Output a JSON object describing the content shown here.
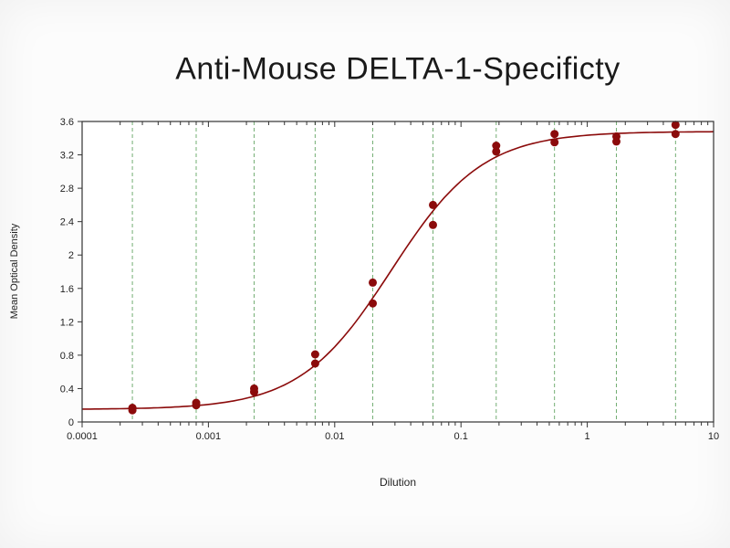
{
  "page": {
    "background": "#fcfcfc"
  },
  "chart_data": {
    "type": "scatter",
    "title": "Anti-Mouse DELTA-1-Specificty",
    "xlabel": "Dilution",
    "ylabel": "Mean Optical Density",
    "x_scale": "log",
    "grid": "vertical-dashed",
    "legend": "none",
    "xlim": [
      0.0001,
      10
    ],
    "ylim": [
      0,
      3.6
    ],
    "x_ticks": [
      {
        "value": 0.0001,
        "label": "0.0001"
      },
      {
        "value": 0.001,
        "label": "0.001"
      },
      {
        "value": 0.01,
        "label": "0.01"
      },
      {
        "value": 0.1,
        "label": "0.1"
      },
      {
        "value": 1,
        "label": "1"
      },
      {
        "value": 10,
        "label": "10"
      }
    ],
    "y_ticks": [
      {
        "value": 0,
        "label": "0"
      },
      {
        "value": 0.4,
        "label": "0.4"
      },
      {
        "value": 0.8,
        "label": "0.8"
      },
      {
        "value": 1.2,
        "label": "1.2"
      },
      {
        "value": 1.6,
        "label": "1.6"
      },
      {
        "value": 2,
        "label": "2"
      },
      {
        "value": 2.4,
        "label": "2.4"
      },
      {
        "value": 2.8,
        "label": "2.8"
      },
      {
        "value": 3.2,
        "label": "3.2"
      },
      {
        "value": 3.6,
        "label": "3.6"
      }
    ],
    "points": [
      [
        0.00025,
        0.14
      ],
      [
        0.00025,
        0.17
      ],
      [
        0.0008,
        0.2
      ],
      [
        0.0008,
        0.23
      ],
      [
        0.0023,
        0.36
      ],
      [
        0.0023,
        0.4
      ],
      [
        0.007,
        0.7
      ],
      [
        0.007,
        0.81
      ],
      [
        0.02,
        1.42
      ],
      [
        0.02,
        1.67
      ],
      [
        0.06,
        2.36
      ],
      [
        0.06,
        2.6
      ],
      [
        0.19,
        3.24
      ],
      [
        0.19,
        3.31
      ],
      [
        0.55,
        3.35
      ],
      [
        0.55,
        3.45
      ],
      [
        1.7,
        3.36
      ],
      [
        1.7,
        3.42
      ],
      [
        5,
        3.45
      ],
      [
        5,
        3.56
      ]
    ],
    "fit_curve": {
      "model": "4PL",
      "bottom": 0.15,
      "top": 3.48,
      "ec50": 0.028,
      "hill": 1.2
    },
    "gridlines_x": [
      0.00025,
      0.0008,
      0.0023,
      0.007,
      0.02,
      0.06,
      0.19,
      0.55,
      1.7,
      5
    ],
    "colors": {
      "series": "#8b0b0b",
      "gridline": "#5ba05b",
      "axis": "#333333",
      "text": "#222222",
      "plot_background": "#ffffff"
    }
  }
}
